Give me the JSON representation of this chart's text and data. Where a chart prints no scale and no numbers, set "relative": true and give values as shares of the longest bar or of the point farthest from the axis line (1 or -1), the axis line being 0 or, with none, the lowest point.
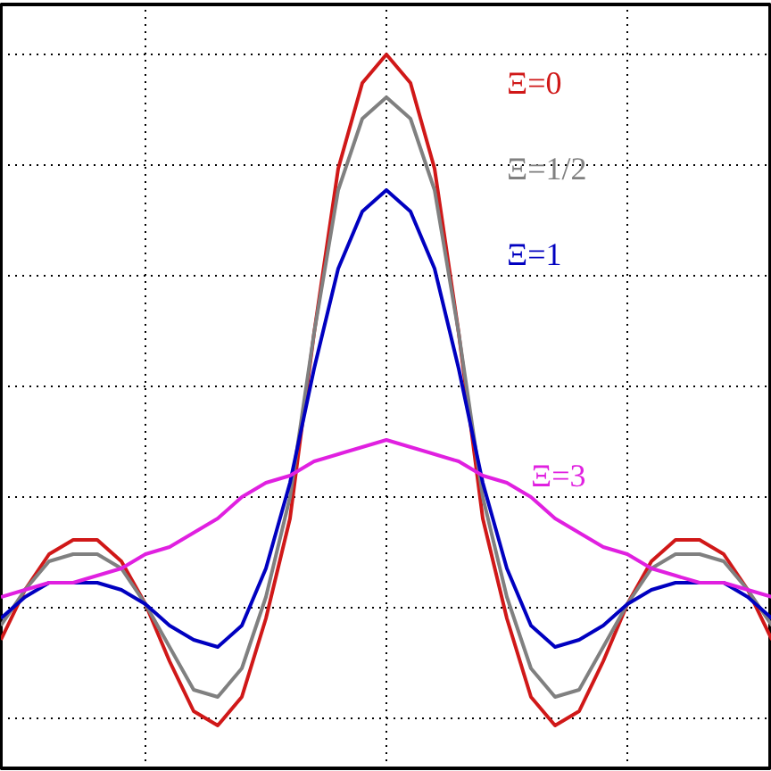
{
  "chart_data": {
    "type": "line",
    "relative": true,
    "grid": true,
    "categories": [
      null,
      null,
      null,
      null,
      null,
      null,
      null,
      null,
      null,
      null,
      null,
      null,
      null,
      null,
      null,
      null,
      null,
      null,
      null,
      null,
      null,
      null,
      null,
      null,
      null,
      null,
      null,
      null,
      null,
      null,
      null,
      null,
      null
    ],
    "series": [
      {
        "name": "Ξ=0",
        "color": "#d01818",
        "values": [
          0.18,
          0.25,
          0.3,
          0.32,
          0.32,
          0.29,
          0.23,
          0.15,
          0.08,
          0.06,
          0.1,
          0.21,
          0.35,
          0.61,
          0.84,
          0.96,
          1,
          0.96,
          0.84,
          0.61,
          0.35,
          0.21,
          0.1,
          0.06,
          0.08,
          0.15,
          0.23,
          0.29,
          0.32,
          0.32,
          0.3,
          0.25,
          0.18
        ]
      },
      {
        "name": "Ξ=1/2",
        "color": "#808080",
        "values": [
          0.2,
          0.25,
          0.29,
          0.3,
          0.3,
          0.28,
          0.23,
          0.17,
          0.11,
          0.1,
          0.14,
          0.24,
          0.38,
          0.61,
          0.81,
          0.91,
          0.94,
          0.91,
          0.81,
          0.61,
          0.38,
          0.24,
          0.14,
          0.1,
          0.11,
          0.17,
          0.23,
          0.28,
          0.3,
          0.3,
          0.29,
          0.25,
          0.2
        ]
      },
      {
        "name": "Ξ=1",
        "color": "#0000c0",
        "values": [
          0.21,
          0.24,
          0.26,
          0.26,
          0.26,
          0.25,
          0.23,
          0.2,
          0.18,
          0.17,
          0.2,
          0.28,
          0.4,
          0.56,
          0.7,
          0.78,
          0.81,
          0.78,
          0.7,
          0.56,
          0.4,
          0.28,
          0.2,
          0.17,
          0.18,
          0.2,
          0.23,
          0.25,
          0.26,
          0.26,
          0.26,
          0.24,
          0.21
        ]
      },
      {
        "name": "Ξ=3",
        "color": "#e020e0",
        "values": [
          0.24,
          0.25,
          0.26,
          0.26,
          0.27,
          0.28,
          0.3,
          0.31,
          0.33,
          0.35,
          0.38,
          0.4,
          0.41,
          0.43,
          0.44,
          0.45,
          0.46,
          0.45,
          0.44,
          0.43,
          0.41,
          0.4,
          0.38,
          0.35,
          0.33,
          0.31,
          0.3,
          0.28,
          0.27,
          0.26,
          0.26,
          0.25,
          0.24
        ]
      }
    ]
  }
}
